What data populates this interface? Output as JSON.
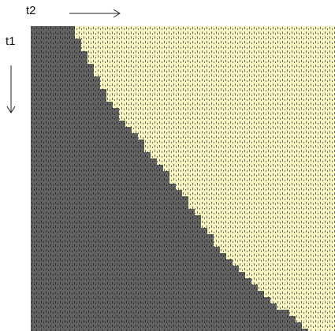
{
  "axes": {
    "horizontal_label": "t2",
    "vertical_label": "t1",
    "horizontal_arrow_icon": "arrow-right-icon",
    "vertical_arrow_icon": "arrow-down-icon"
  },
  "colors": {
    "region_below": "#626262",
    "region_above": "#fbf7c4",
    "texture_dark": "#2e2e2e",
    "texture_light": "#626262",
    "axis_text": "#111111"
  },
  "boundary_description_points": [
    [
      0.0,
      0.14
    ],
    [
      0.1,
      0.18
    ],
    [
      0.2,
      0.23
    ],
    [
      0.3,
      0.3
    ],
    [
      0.4,
      0.38
    ],
    [
      0.5,
      0.46
    ],
    [
      0.6,
      0.53
    ],
    [
      0.7,
      0.6
    ],
    [
      0.8,
      0.68
    ],
    [
      0.9,
      0.79
    ],
    [
      1.0,
      0.92
    ]
  ]
}
